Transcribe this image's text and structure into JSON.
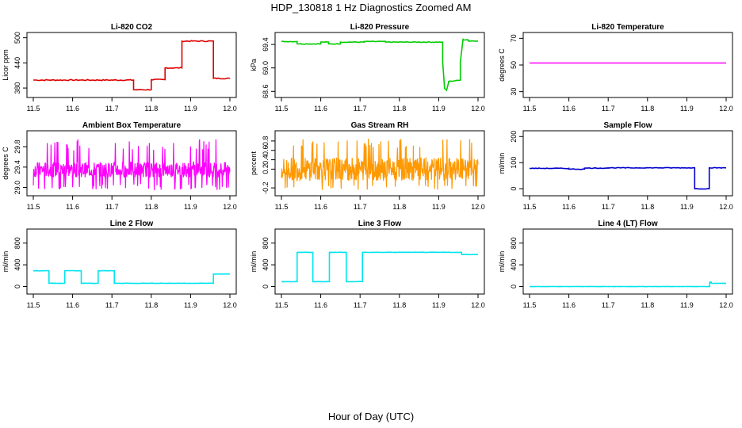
{
  "title": "HDP_130818  1 Hz Diagnostics Zoomed AM",
  "footer_label": "Hour of Day (UTC)",
  "chart_data": [
    {
      "type": "line",
      "title": "Li-820 CO2",
      "ylabel": "Licor ppm",
      "xlim": [
        11.5,
        12.0
      ],
      "ylim": [
        365,
        505
      ],
      "xticks": [
        11.5,
        11.6,
        11.7,
        11.8,
        11.9,
        12.0
      ],
      "yticks": [
        380,
        440,
        500
      ],
      "color": "#dd0000",
      "noise": 1.2,
      "series": [
        {
          "x": [
            11.5,
            11.755,
            11.755,
            11.8,
            11.8,
            11.835,
            11.835,
            11.878,
            11.878,
            11.958,
            11.958,
            12.0
          ],
          "y": [
            399,
            399,
            376,
            376,
            400,
            400,
            428,
            428,
            492,
            492,
            403,
            403
          ]
        }
      ]
    },
    {
      "type": "line",
      "title": "Li-820 Pressure",
      "ylabel": "kPa",
      "xlim": [
        11.5,
        12.0
      ],
      "ylim": [
        68.55,
        69.55
      ],
      "xticks": [
        11.5,
        11.6,
        11.7,
        11.8,
        11.9,
        12.0
      ],
      "yticks": [
        68.6,
        69.0,
        69.4
      ],
      "color": "#00cc00",
      "noise": 0.006,
      "series": [
        {
          "x": [
            11.5,
            11.54,
            11.54,
            11.6,
            11.6,
            11.62,
            11.62,
            11.65,
            11.65,
            11.71,
            11.71,
            11.765,
            11.765,
            11.91,
            11.91,
            11.915,
            11.92,
            11.925,
            11.925,
            11.955,
            11.955,
            11.962,
            11.962,
            11.975,
            11.975,
            12.0
          ],
          "y": [
            69.45,
            69.45,
            69.41,
            69.41,
            69.44,
            69.44,
            69.41,
            69.41,
            69.44,
            69.44,
            69.45,
            69.45,
            69.44,
            69.44,
            69.1,
            68.65,
            68.62,
            68.75,
            68.77,
            68.79,
            69.1,
            69.5,
            69.48,
            69.48,
            69.46,
            69.46
          ]
        }
      ]
    },
    {
      "type": "line",
      "title": "Li-820 Temperature",
      "ylabel": "degrees C",
      "xlim": [
        11.5,
        12.0
      ],
      "ylim": [
        28,
        72
      ],
      "xticks": [
        11.5,
        11.6,
        11.7,
        11.8,
        11.9,
        12.0
      ],
      "yticks": [
        30,
        50,
        70
      ],
      "color": "#ff00ff",
      "noise": 0,
      "series": [
        {
          "x": [
            11.5,
            12.0
          ],
          "y": [
            51.5,
            51.5
          ]
        }
      ]
    },
    {
      "type": "line",
      "title": "Ambient Box Temperature",
      "ylabel": "degrees C",
      "xlim": [
        11.5,
        12.0
      ],
      "ylim": [
        28.9,
        30.05
      ],
      "xticks": [
        11.5,
        11.6,
        11.7,
        11.8,
        11.9,
        12.0
      ],
      "yticks": [
        29.0,
        29.4,
        29.8
      ],
      "color": "#ff00ff",
      "noise": 0,
      "bands": [
        [
          29.2,
          29.5
        ]
      ],
      "spikes": {
        "low": 28.95,
        "high": 29.95
      },
      "series": [
        {
          "x": [
            11.5,
            12.0
          ],
          "y": [
            29.35,
            29.35
          ]
        }
      ]
    },
    {
      "type": "line",
      "title": "Gas Stream RH",
      "ylabel": "percent",
      "xlim": [
        11.5,
        12.0
      ],
      "ylim": [
        -0.3,
        0.95
      ],
      "xticks": [
        11.5,
        11.6,
        11.7,
        11.8,
        11.9,
        12.0
      ],
      "yticks": [
        -0.2,
        0.2,
        0.4,
        0.6,
        0.8
      ],
      "color": "#ff9900",
      "noise": 0,
      "bands": [
        [
          -0.05,
          0.45
        ]
      ],
      "spikes": {
        "low": -0.25,
        "high": 0.85
      },
      "series": [
        {
          "x": [
            11.5,
            12.0
          ],
          "y": [
            0.2,
            0.2
          ]
        }
      ]
    },
    {
      "type": "line",
      "title": "Sample Flow",
      "ylabel": "ml/min",
      "xlim": [
        11.5,
        12.0
      ],
      "ylim": [
        -15,
        210
      ],
      "xticks": [
        11.5,
        11.6,
        11.7,
        11.8,
        11.9,
        12.0
      ],
      "yticks": [
        0,
        100,
        200
      ],
      "color": "#0000cc",
      "noise": 1.2,
      "series": [
        {
          "x": [
            11.5,
            11.6,
            11.6,
            11.64,
            11.64,
            11.7,
            11.7,
            11.92,
            11.92,
            11.957,
            11.957,
            12.0
          ],
          "y": [
            78,
            78,
            75,
            75,
            79,
            79,
            80,
            80,
            0,
            0,
            80,
            80
          ]
        }
      ]
    },
    {
      "type": "line",
      "title": "Line 2 Flow",
      "ylabel": "ml/min",
      "xlim": [
        11.5,
        12.0
      ],
      "ylim": [
        -80,
        1000
      ],
      "xticks": [
        11.5,
        11.6,
        11.7,
        11.8,
        11.9,
        12.0
      ],
      "yticks": [
        0,
        400,
        800
      ],
      "color": "#00e5ee",
      "noise": 3,
      "series": [
        {
          "x": [
            11.5,
            11.54,
            11.54,
            11.58,
            11.58,
            11.622,
            11.622,
            11.665,
            11.665,
            11.706,
            11.706,
            11.958,
            11.958,
            12.0
          ],
          "y": [
            290,
            290,
            60,
            60,
            290,
            290,
            60,
            60,
            290,
            290,
            60,
            60,
            230,
            230
          ]
        }
      ]
    },
    {
      "type": "line",
      "title": "Line 3 Flow",
      "ylabel": "ml/min",
      "xlim": [
        11.5,
        12.0
      ],
      "ylim": [
        -80,
        1000
      ],
      "xticks": [
        11.5,
        11.6,
        11.7,
        11.8,
        11.9,
        12.0
      ],
      "yticks": [
        0,
        400,
        800
      ],
      "color": "#00e5ee",
      "noise": 3,
      "series": [
        {
          "x": [
            11.5,
            11.54,
            11.54,
            11.58,
            11.58,
            11.622,
            11.622,
            11.665,
            11.665,
            11.706,
            11.706,
            11.958,
            11.958,
            12.0
          ],
          "y": [
            90,
            90,
            630,
            630,
            90,
            90,
            630,
            630,
            90,
            90,
            630,
            630,
            590,
            590
          ]
        }
      ]
    },
    {
      "type": "line",
      "title": "Line 4 (LT) Flow",
      "ylabel": "ml/min",
      "xlim": [
        11.5,
        12.0
      ],
      "ylim": [
        -80,
        1000
      ],
      "xticks": [
        11.5,
        11.6,
        11.7,
        11.8,
        11.9,
        12.0
      ],
      "yticks": [
        0,
        400,
        800
      ],
      "color": "#00e5ee",
      "noise": 2,
      "series": [
        {
          "x": [
            11.5,
            11.958,
            11.958,
            11.962,
            11.962,
            12.0
          ],
          "y": [
            0,
            0,
            80,
            80,
            60,
            60
          ]
        }
      ]
    }
  ]
}
